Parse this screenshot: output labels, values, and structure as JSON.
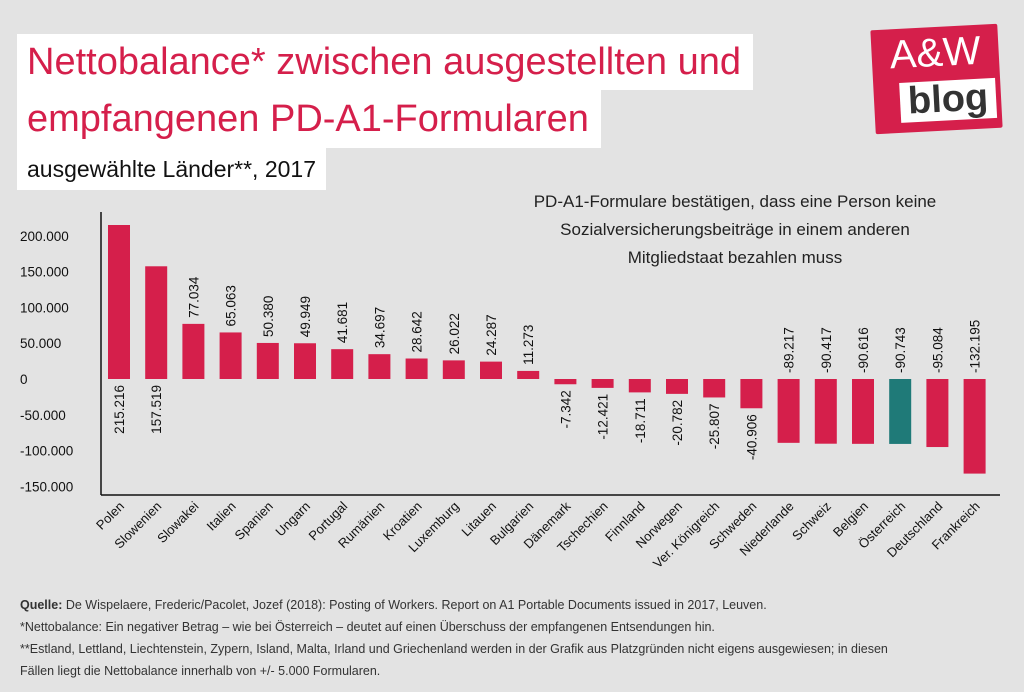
{
  "header": {
    "title_line1": "Nettobalance* zwischen ausgestellten und",
    "title_line2": "empfangenen PD-A1-Formularen",
    "subtitle": "ausgewählte Länder**, 2017"
  },
  "logo": {
    "top": "A&W",
    "bottom": "blog"
  },
  "note": {
    "line1": "PD-A1-Formulare bestätigen, dass eine Person keine",
    "line2": "Sozialversicherungsbeiträge in einem anderen",
    "line3": "Mitgliedstaat bezahlen muss"
  },
  "colors": {
    "bar": "#d51f4b",
    "highlight": "#1f7a78",
    "axis": "#111111"
  },
  "chart_data": {
    "type": "bar",
    "categories": [
      "Polen",
      "Slowenien",
      "Slowakei",
      "Italien",
      "Spanien",
      "Ungarn",
      "Portugal",
      "Rumänien",
      "Kroatien",
      "Luxemburg",
      "Litauen",
      "Bulgarien",
      "Dänemark",
      "Tschechien",
      "Finnland",
      "Norwegen",
      "Ver. Königreich",
      "Schweden",
      "Niederlande",
      "Schweiz",
      "Belgien",
      "Österreich",
      "Deutschland",
      "Frankreich"
    ],
    "values": [
      215216,
      157519,
      77034,
      65063,
      50380,
      49949,
      41681,
      34697,
      28642,
      26022,
      24287,
      11273,
      -7342,
      -12421,
      -18711,
      -20782,
      -25807,
      -40906,
      -89217,
      -90417,
      -90616,
      -90743,
      -95084,
      -132195
    ],
    "labels": [
      "215.216",
      "157.519",
      "77.034",
      "65.063",
      "50.380",
      "49.949",
      "41.681",
      "34.697",
      "28.642",
      "26.022",
      "24.287",
      "11.273",
      "-7.342",
      "-12.421",
      "-18.711",
      "-20.782",
      "-25.807",
      "-40.906",
      "-89.217",
      "-90.417",
      "-90.616",
      "-90.743",
      "-95.084",
      "-132.195"
    ],
    "highlight_category": "Österreich",
    "yticks": [
      200000,
      150000,
      100000,
      50000,
      0,
      -50000,
      -100000,
      -150000
    ],
    "ytick_labels": [
      "200.000",
      "150.000",
      "100.000",
      "50.000",
      "0",
      "-50.000",
      "-100.000",
      "-150.000"
    ],
    "ylim": [
      -160000,
      225000
    ],
    "grid": false
  },
  "footer": {
    "source_label": "Quelle:",
    "source_text": " De Wispelaere, Frederic/Pacolet, Jozef (2018): Posting of Workers. Report on A1 Portable Documents issued in 2017, Leuven.",
    "note1": "*Nettobalance: Ein negativer Betrag – wie bei Österreich – deutet auf einen Überschuss der empfangenen Entsendungen hin.",
    "note2a": "**Estland, Lettland, Liechtenstein, Zypern, Island, Malta, Irland und Griechenland werden in der Grafik aus Platzgründen nicht eigens ausgewiesen; in diesen",
    "note2b": "Fällen liegt die Nettobalance innerhalb von +/- 5.000 Formularen."
  }
}
